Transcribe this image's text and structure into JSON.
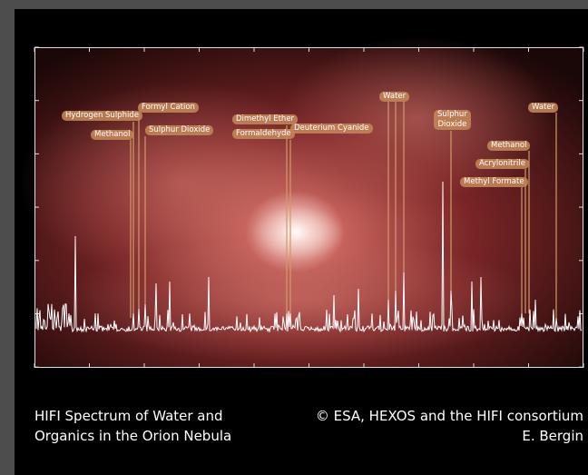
{
  "image": {
    "labels": [
      {
        "text": "Hydrogen Sulphide"
      },
      {
        "text": "Formyl Cation"
      },
      {
        "text": "Methanol"
      },
      {
        "text": "Sulphur Dioxide"
      },
      {
        "text": "Dimethyl Ether"
      },
      {
        "text": "Formaldehyde"
      },
      {
        "text": "Deuterium Cyanide"
      },
      {
        "text": "Water"
      },
      {
        "text": [
          "Sulphur",
          "Dioxide"
        ]
      },
      {
        "text": "Water"
      },
      {
        "text": "Methanol"
      },
      {
        "text": "Acrylonitrile"
      },
      {
        "text": "Methyl Formate"
      }
    ]
  },
  "caption": {
    "title": [
      "HIFI Spectrum of Water and",
      "Organics in the Orion Nebula"
    ],
    "credit": [
      "© ESA, HEXOS and the HIFI consortium",
      "E. Bergin"
    ]
  }
}
